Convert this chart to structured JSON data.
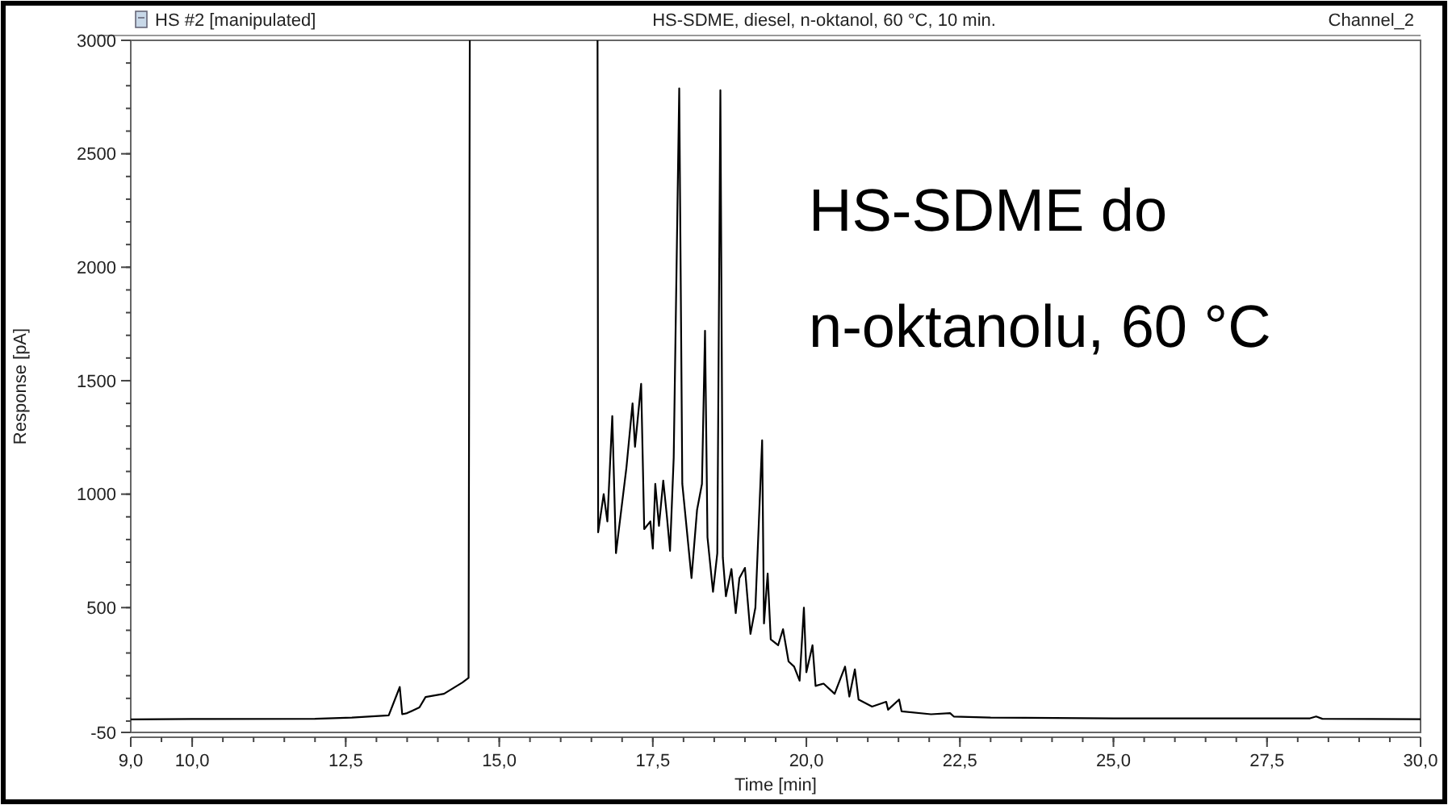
{
  "chart_data": {
    "type": "line",
    "title": "HS-SDME, diesel, n-oktanol, 60 °C, 10 min.",
    "xlabel": "Time [min]",
    "ylabel": "Response [pA]",
    "annotations": [
      "HS #2 [manipulated]",
      "Channel_2",
      "HS-SDME do",
      "n-oktanolu, 60 °C"
    ],
    "xlim": [
      9,
      30
    ],
    "ylim": [
      -50,
      3000
    ],
    "xticks": [
      {
        "value": 9,
        "label": "9,0"
      },
      {
        "value": 10,
        "label": "10,0"
      },
      {
        "value": 12.5,
        "label": "12,5"
      },
      {
        "value": 15,
        "label": "15,0"
      },
      {
        "value": 17.5,
        "label": "17,5"
      },
      {
        "value": 20,
        "label": "20,0"
      },
      {
        "value": 22.5,
        "label": "22,5"
      },
      {
        "value": 25,
        "label": "25,0"
      },
      {
        "value": 27.5,
        "label": "27,5"
      },
      {
        "value": 30,
        "label": "30,0"
      }
    ],
    "yticks": [
      -50,
      500,
      1000,
      1500,
      2000,
      2500,
      3000
    ],
    "marker": "none",
    "line_style": "solid",
    "series": [
      {
        "color": "#000000",
        "x": [
          9,
          10,
          12,
          12.6,
          13.2,
          13.38,
          13.42,
          13.5,
          13.7,
          13.8,
          14.1,
          14.4,
          14.5,
          14.52,
          15.5,
          16.6,
          16.61,
          16.7,
          16.76,
          16.84,
          16.9,
          17.07,
          17.17,
          17.21,
          17.31,
          17.36,
          17.46,
          17.5,
          17.54,
          17.6,
          17.67,
          17.73,
          17.78,
          17.84,
          17.93,
          17.98,
          18.04,
          18.13,
          18.22,
          18.3,
          18.35,
          18.39,
          18.48,
          18.55,
          18.6,
          18.64,
          18.69,
          18.78,
          18.85,
          18.91,
          19,
          19.09,
          19.17,
          19.28,
          19.31,
          19.37,
          19.42,
          19.54,
          19.62,
          19.71,
          19.8,
          19.89,
          19.96,
          20,
          20.1,
          20.15,
          20.28,
          20.46,
          20.63,
          20.7,
          20.79,
          20.85,
          21.07,
          21.3,
          21.33,
          21.51,
          21.55,
          22.03,
          22.34,
          22.4,
          23,
          25,
          28.2,
          28.3,
          28.4,
          30
        ],
        "values": [
          7,
          9,
          10,
          15,
          25,
          150,
          30,
          35,
          60,
          106,
          120,
          170,
          190,
          3000,
          null,
          3000,
          832,
          1000,
          880,
          1344,
          740,
          1116,
          1400,
          1209,
          1486,
          846,
          880,
          760,
          1045,
          860,
          1060,
          900,
          750,
          1160,
          2788,
          1045,
          880,
          630,
          930,
          1045,
          1720,
          810,
          570,
          740,
          2780,
          720,
          550,
          670,
          476,
          630,
          675,
          384,
          500,
          1237,
          430,
          650,
          360,
          334,
          405,
          263,
          240,
          178,
          500,
          215,
          334,
          155,
          165,
          120,
          240,
          108,
          228,
          95,
          64,
          85,
          50,
          95,
          43,
          30,
          35,
          20,
          15,
          12,
          12,
          20,
          10,
          8
        ]
      }
    ]
  }
}
